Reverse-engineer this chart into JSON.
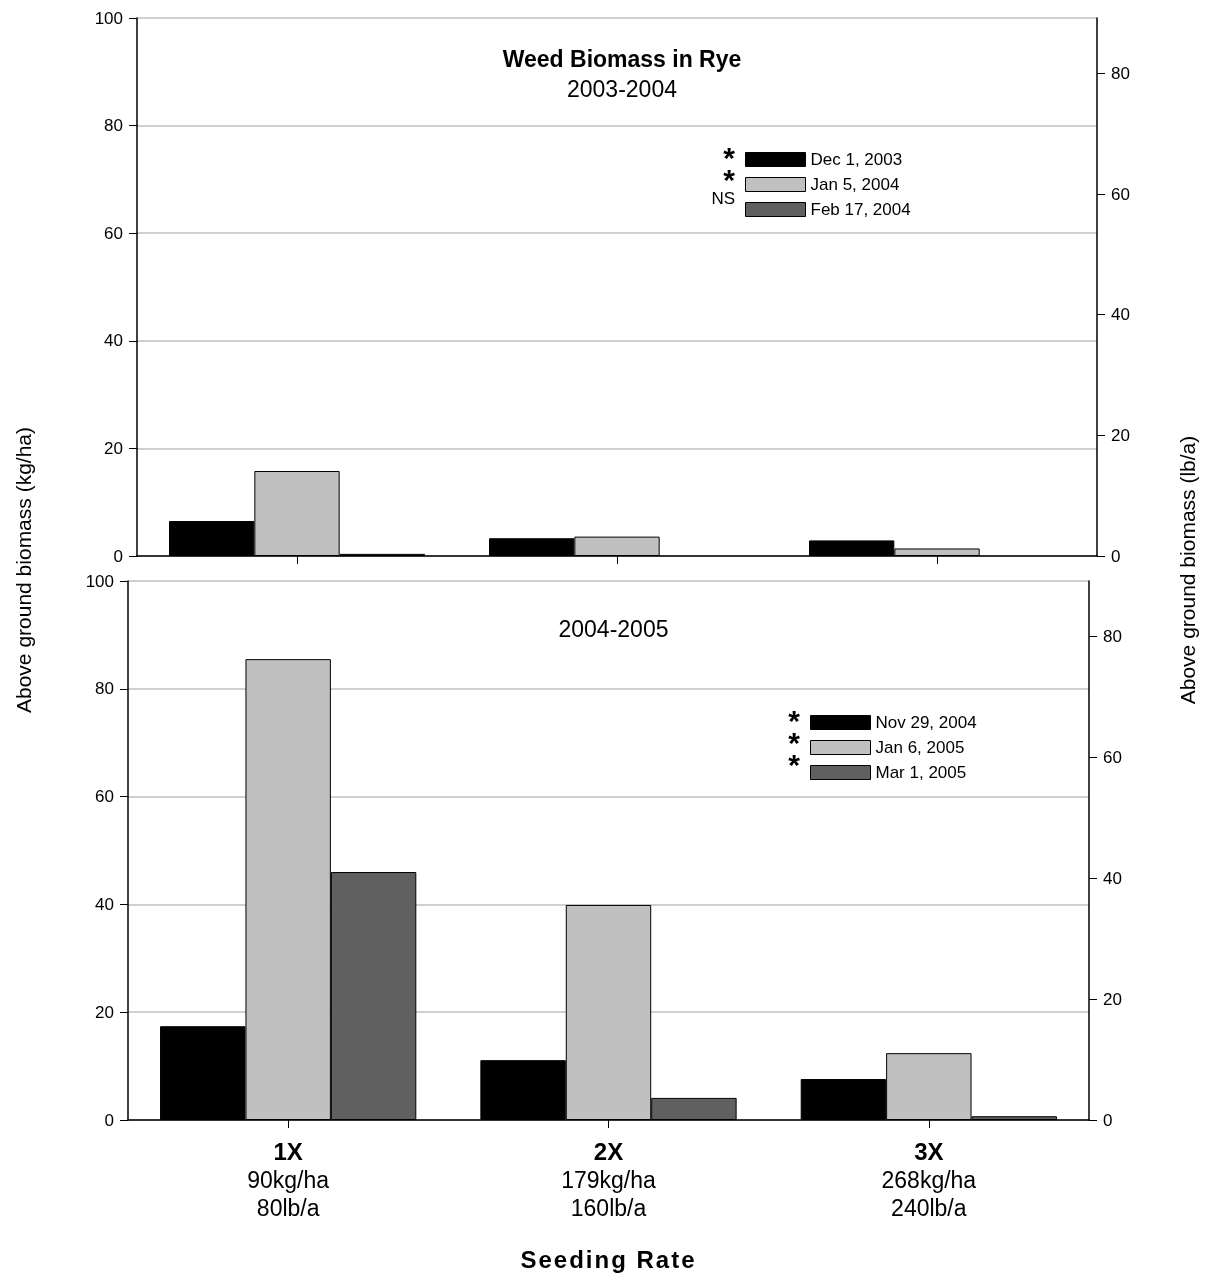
{
  "chart_data": [
    {
      "type": "bar",
      "title": "Weed Biomass in Rye",
      "subtitle": "2003-2004",
      "categories": [
        null,
        null,
        null
      ],
      "series": [
        {
          "name": "Dec 1, 2003",
          "color": "#000000",
          "values": [
            6.5,
            3.3,
            2.9
          ]
        },
        {
          "name": "Jan 5, 2004",
          "color": "#c0c0c0",
          "values": [
            15.8,
            3.6,
            1.4
          ]
        },
        {
          "name": "Feb 17, 2004",
          "color": "#606060",
          "values": [
            0.4,
            0,
            0
          ]
        }
      ],
      "annotations": [
        "*",
        "*",
        "NS"
      ],
      "ylim": [
        0,
        100
      ],
      "yticks": [
        0,
        20,
        40,
        60,
        80,
        100
      ],
      "y2lim": [
        0,
        89.2
      ],
      "y2ticks": [
        0,
        20,
        40,
        60,
        80
      ],
      "grid": "y",
      "legend": "top right",
      "tick_labels": "y"
    },
    {
      "type": "bar",
      "subtitle": "2004-2005",
      "xlabel": "Seeding Rate",
      "ylabel": "Above ground biomass (kg/ha)",
      "y2label": "Above ground biomass (lb/a)",
      "categories": [
        "1X\n90kg/ha\n80lb/a",
        "2X\n179kg/ha\n160lb/a",
        "3X\n268kg/ha\n240lb/a"
      ],
      "series": [
        {
          "name": "Nov 29, 2004",
          "color": "#000000",
          "values": [
            17.4,
            11.1,
            7.6
          ]
        },
        {
          "name": "Jan 6, 2005",
          "color": "#c0c0c0",
          "values": [
            85.5,
            39.9,
            12.4
          ]
        },
        {
          "name": "Mar 1, 2005",
          "color": "#606060",
          "values": [
            46.0,
            4.1,
            0.7
          ]
        }
      ],
      "annotations": [
        "*",
        "*",
        "*"
      ],
      "ylim": [
        0,
        100
      ],
      "yticks": [
        0,
        20,
        40,
        60,
        80,
        100
      ],
      "y2lim": [
        0,
        89.2
      ],
      "y2ticks": [
        0,
        20,
        40,
        60,
        80
      ],
      "grid": "y",
      "legend": "top right"
    }
  ]
}
